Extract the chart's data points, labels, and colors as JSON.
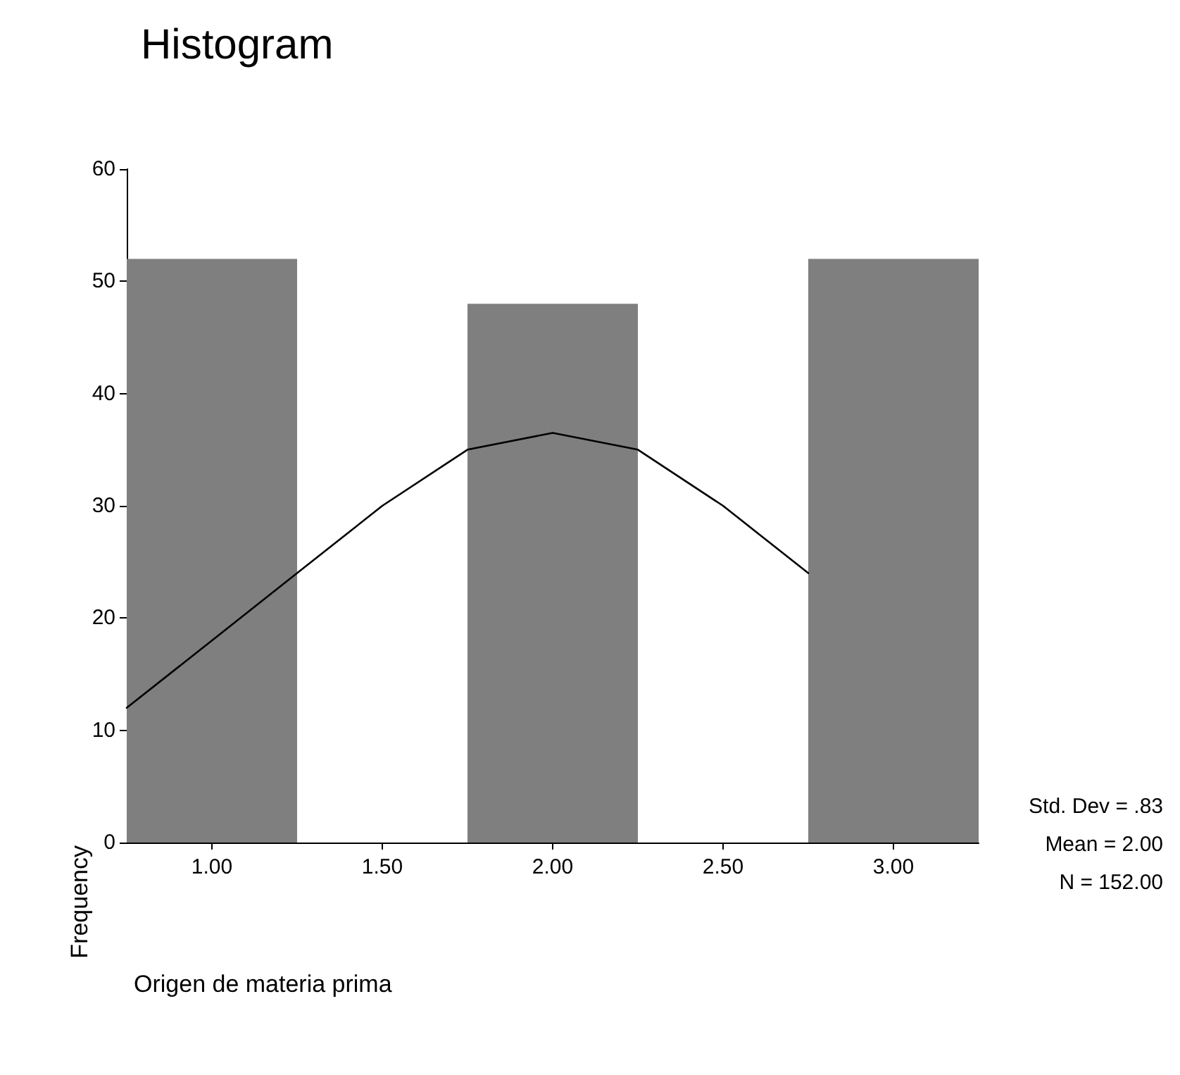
{
  "chart_data": {
    "type": "histogram",
    "title": "Histogram",
    "xlabel": "Origen de materia prima",
    "ylabel": "Frequency",
    "bins": [
      0.75,
      1.25,
      1.75,
      2.25,
      2.75,
      3.25
    ],
    "values": [
      52,
      0,
      48,
      0,
      52
    ],
    "color": "#7f7f7f",
    "series": [
      {
        "type": "line",
        "color": "#000000",
        "x": [
          0.75,
          1.0,
          1.25,
          1.5,
          1.75,
          2.0,
          2.25,
          2.5,
          2.75
        ],
        "values": [
          12,
          18,
          24,
          30,
          35,
          36.5,
          35,
          30,
          24
        ]
      }
    ],
    "xlim": [
      0.75,
      3.25
    ],
    "xticks": [
      {
        "value": 1,
        "label": "1.00"
      },
      {
        "value": 1.5,
        "label": "1.50"
      },
      {
        "value": 2,
        "label": "2.00"
      },
      {
        "value": 2.5,
        "label": "2.50"
      },
      {
        "value": 3,
        "label": "3.00"
      }
    ],
    "ylim": [
      0,
      60
    ],
    "yticks": [
      0,
      10,
      20,
      30,
      40,
      50,
      60
    ],
    "grid": false,
    "marker": "none",
    "line_style": "solid",
    "annotations": [
      "Std. Dev = .83",
      "Mean = 2.00",
      "N = 152.00"
    ]
  }
}
